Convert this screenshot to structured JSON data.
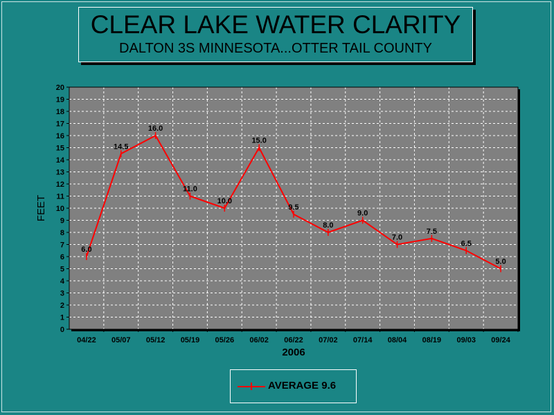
{
  "title": "CLEAR LAKE WATER CLARITY",
  "subtitle": "DALTON 3S MINNESOTA...OTTER TAIL COUNTY",
  "colors": {
    "background": "#1a8585",
    "plot_background": "#808080",
    "series": "#ff0000",
    "grid": "#ffffff"
  },
  "legend": {
    "label": "AVERAGE 9.6",
    "placement": "bottom-center"
  },
  "chart_data": {
    "type": "line",
    "title": "CLEAR LAKE WATER CLARITY",
    "subtitle": "DALTON 3S MINNESOTA...OTTER TAIL COUNTY",
    "xlabel": "2006",
    "ylabel": "FEET",
    "categories": [
      "04/22",
      "05/07",
      "05/12",
      "05/19",
      "05/26",
      "06/02",
      "06/22",
      "07/02",
      "07/14",
      "08/04",
      "08/19",
      "09/03",
      "09/24"
    ],
    "series": [
      {
        "values": [
          6.0,
          14.5,
          16.0,
          11.0,
          10.0,
          15.0,
          9.5,
          8.0,
          9.0,
          7.0,
          7.5,
          6.5,
          5.0
        ],
        "labels": [
          "6.0",
          "14.5",
          "16.0",
          "11.0",
          "10.0",
          "15.0",
          "9.5",
          "8.0",
          "9.0",
          "7.0",
          "7.5",
          "6.5",
          "5.0"
        ]
      }
    ],
    "ylim": [
      0,
      20
    ],
    "yticks": [
      "0",
      "1",
      "2",
      "3",
      "4",
      "5",
      "6",
      "7",
      "8",
      "9",
      "10",
      "11",
      "12",
      "13",
      "14",
      "15",
      "16",
      "17",
      "18",
      "19",
      "20"
    ],
    "grid": true,
    "legend": "bottom-center"
  }
}
